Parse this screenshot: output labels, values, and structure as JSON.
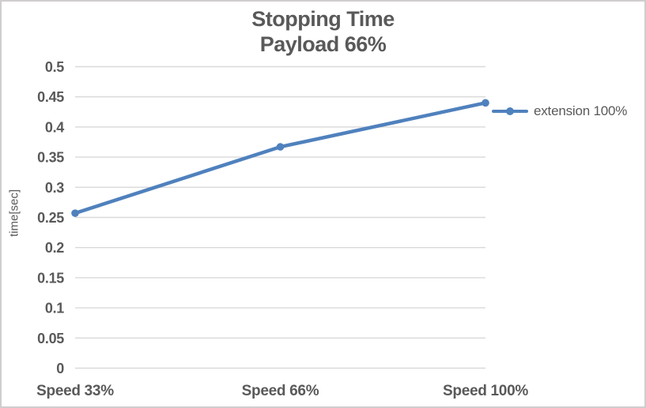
{
  "chart_data": {
    "type": "line",
    "title": "Stopping Time",
    "subtitle": "Payload 66%",
    "ylabel": "time[sec]",
    "xlabel": "",
    "categories": [
      "Speed 33%",
      "Speed 66%",
      "Speed 100%"
    ],
    "series": [
      {
        "name": "extension 100%",
        "values": [
          0.257,
          0.367,
          0.44
        ]
      }
    ],
    "ylim": [
      0,
      0.5
    ],
    "ytick_values": [
      0,
      0.05,
      0.1,
      0.15,
      0.2,
      0.25,
      0.3,
      0.35,
      0.4,
      0.45,
      0.5
    ],
    "ytick_labels": [
      "0",
      "0.05",
      "0.1",
      "0.15",
      "0.2",
      "0.25",
      "0.3",
      "0.35",
      "0.4",
      "0.45",
      "0.5"
    ],
    "grid": true,
    "legend_position": "right",
    "marker": "circle",
    "colors": {
      "line": "#4F81BD",
      "gridline": "#D9D9D9",
      "text": "#595959",
      "frame_border": "#CFCDCD"
    }
  }
}
